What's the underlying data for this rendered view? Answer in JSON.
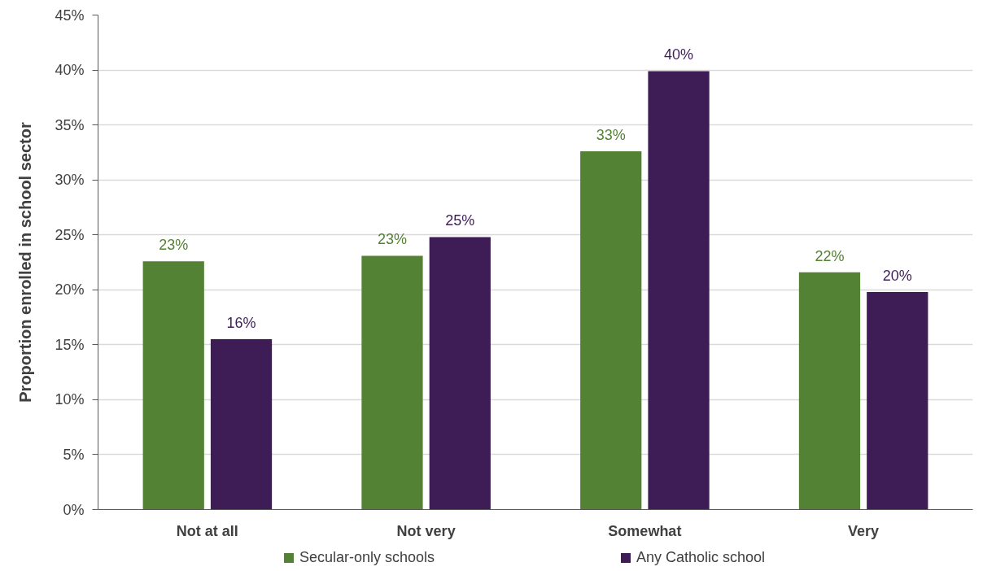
{
  "chart_data": {
    "type": "bar",
    "ylabel": "Proportion enrolled in school sector",
    "categories": [
      "Not at all",
      "Not very",
      "Somewhat",
      "Very"
    ],
    "series": [
      {
        "name": "Secular-only schools",
        "color": "#548235",
        "values": [
          22.6,
          23.1,
          32.6,
          21.6
        ],
        "value_labels": [
          "23%",
          "23%",
          "33%",
          "22%"
        ]
      },
      {
        "name": "Any Catholic school",
        "color": "#3e1d56",
        "values": [
          15.5,
          24.8,
          39.9,
          19.8
        ],
        "value_labels": [
          "16%",
          "25%",
          "40%",
          "20%"
        ]
      }
    ],
    "ylim": [
      0,
      45
    ],
    "yticks": [
      {
        "value": 0,
        "label": "0%"
      },
      {
        "value": 5,
        "label": "5%"
      },
      {
        "value": 10,
        "label": "10%"
      },
      {
        "value": 15,
        "label": "15%"
      },
      {
        "value": 20,
        "label": "20%"
      },
      {
        "value": 25,
        "label": "25%"
      },
      {
        "value": 30,
        "label": "30%"
      },
      {
        "value": 35,
        "label": "35%"
      },
      {
        "value": 40,
        "label": "40%"
      },
      {
        "value": 45,
        "label": "45%"
      }
    ],
    "grid": "y",
    "legend": "bottom"
  }
}
